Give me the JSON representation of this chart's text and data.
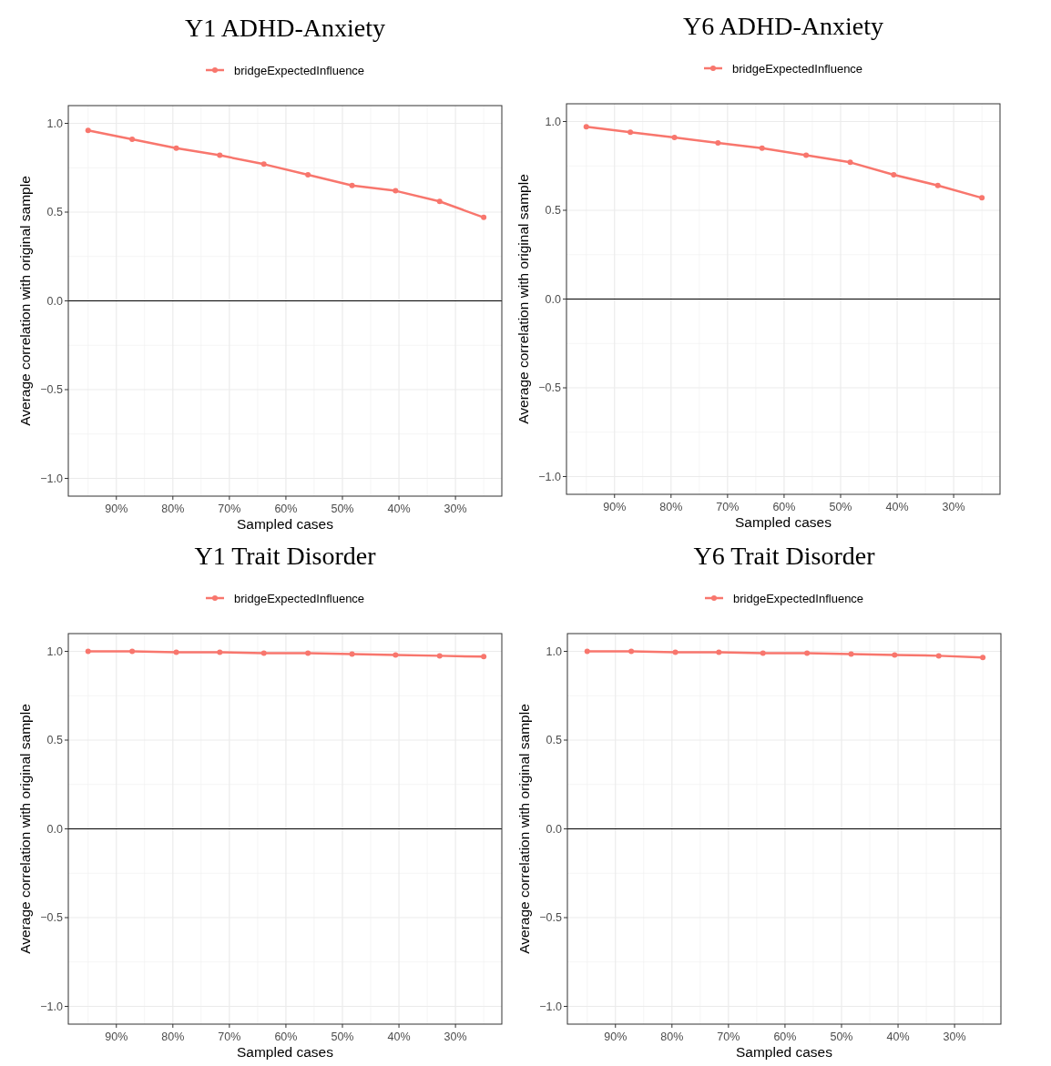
{
  "chart_data": [
    {
      "type": "line",
      "title": "Y1 ADHD-Anxiety",
      "xlabel": "Sampled cases",
      "ylabel": "Average correlation with original sample",
      "x": [
        95,
        87.2,
        79.4,
        71.7,
        63.9,
        56.1,
        48.3,
        40.6,
        32.8,
        25
      ],
      "series": [
        {
          "name": "bridgeExpectedInfluence",
          "color": "#f8766d",
          "values": [
            0.96,
            0.91,
            0.86,
            0.82,
            0.77,
            0.71,
            0.65,
            0.62,
            0.56,
            0.47
          ]
        }
      ],
      "xlim": [
        98.5,
        21.8
      ],
      "xticks": [
        {
          "value": 90,
          "label": "90%"
        },
        {
          "value": 80,
          "label": "80%"
        },
        {
          "value": 70,
          "label": "70%"
        },
        {
          "value": 60,
          "label": "60%"
        },
        {
          "value": 50,
          "label": "50%"
        },
        {
          "value": 40,
          "label": "40%"
        },
        {
          "value": 30,
          "label": "30%"
        }
      ],
      "ylim": [
        -1.1,
        1.1
      ],
      "yticks": [
        {
          "value": -1,
          "label": "−1.0"
        },
        {
          "value": -0.5,
          "label": "−0.5"
        },
        {
          "value": 0,
          "label": "0.0"
        },
        {
          "value": 0.5,
          "label": "0.5"
        },
        {
          "value": 1,
          "label": "1.0"
        }
      ],
      "ref_lines": [
        {
          "axis": "y",
          "value": 0,
          "color": "#000000"
        }
      ],
      "grid": true,
      "legend": "top",
      "marker": "circle",
      "line_style": "solid"
    },
    {
      "type": "line",
      "title": "Y6 ADHD-Anxiety",
      "xlabel": "Sampled cases",
      "ylabel": "Average correlation with original sample",
      "x": [
        95,
        87.2,
        79.4,
        71.7,
        63.9,
        56.1,
        48.3,
        40.6,
        32.8,
        25
      ],
      "series": [
        {
          "name": "bridgeExpectedInfluence",
          "color": "#f8766d",
          "values": [
            0.97,
            0.94,
            0.91,
            0.88,
            0.85,
            0.81,
            0.77,
            0.7,
            0.64,
            0.57
          ]
        }
      ],
      "xlim": [
        98.5,
        21.8
      ],
      "xticks": [
        {
          "value": 90,
          "label": "90%"
        },
        {
          "value": 80,
          "label": "80%"
        },
        {
          "value": 70,
          "label": "70%"
        },
        {
          "value": 60,
          "label": "60%"
        },
        {
          "value": 50,
          "label": "50%"
        },
        {
          "value": 40,
          "label": "40%"
        },
        {
          "value": 30,
          "label": "30%"
        }
      ],
      "ylim": [
        -1.1,
        1.1
      ],
      "yticks": [
        {
          "value": -1,
          "label": "−1.0"
        },
        {
          "value": -0.5,
          "label": "−0.5"
        },
        {
          "value": 0,
          "label": "0.0"
        },
        {
          "value": 0.5,
          "label": "0.5"
        },
        {
          "value": 1,
          "label": "1.0"
        }
      ],
      "ref_lines": [
        {
          "axis": "y",
          "value": 0,
          "color": "#000000"
        }
      ],
      "grid": true,
      "legend": "top",
      "marker": "circle",
      "line_style": "solid"
    },
    {
      "type": "line",
      "title": "Y1 Trait Disorder",
      "xlabel": "Sampled cases",
      "ylabel": "Average correlation with original sample",
      "x": [
        95,
        87.2,
        79.4,
        71.7,
        63.9,
        56.1,
        48.3,
        40.6,
        32.8,
        25
      ],
      "series": [
        {
          "name": "bridgeExpectedInfluence",
          "color": "#f8766d",
          "values": [
            1.0,
            1.0,
            0.995,
            0.995,
            0.99,
            0.99,
            0.985,
            0.98,
            0.975,
            0.97
          ]
        }
      ],
      "xlim": [
        98.5,
        21.8
      ],
      "xticks": [
        {
          "value": 90,
          "label": "90%"
        },
        {
          "value": 80,
          "label": "80%"
        },
        {
          "value": 70,
          "label": "70%"
        },
        {
          "value": 60,
          "label": "60%"
        },
        {
          "value": 50,
          "label": "50%"
        },
        {
          "value": 40,
          "label": "40%"
        },
        {
          "value": 30,
          "label": "30%"
        }
      ],
      "ylim": [
        -1.1,
        1.1
      ],
      "yticks": [
        {
          "value": -1,
          "label": "−1.0"
        },
        {
          "value": -0.5,
          "label": "−0.5"
        },
        {
          "value": 0,
          "label": "0.0"
        },
        {
          "value": 0.5,
          "label": "0.5"
        },
        {
          "value": 1,
          "label": "1.0"
        }
      ],
      "ref_lines": [
        {
          "axis": "y",
          "value": 0,
          "color": "#000000"
        }
      ],
      "grid": true,
      "legend": "top",
      "marker": "circle",
      "line_style": "solid"
    },
    {
      "type": "line",
      "title": "Y6 Trait Disorder",
      "xlabel": "Sampled cases",
      "ylabel": "Average correlation with original sample",
      "x": [
        95,
        87.2,
        79.4,
        71.7,
        63.9,
        56.1,
        48.3,
        40.6,
        32.8,
        25
      ],
      "series": [
        {
          "name": "bridgeExpectedInfluence",
          "color": "#f8766d",
          "values": [
            1.0,
            1.0,
            0.995,
            0.995,
            0.99,
            0.99,
            0.985,
            0.98,
            0.975,
            0.965
          ]
        }
      ],
      "xlim": [
        98.5,
        21.8
      ],
      "xticks": [
        {
          "value": 90,
          "label": "90%"
        },
        {
          "value": 80,
          "label": "80%"
        },
        {
          "value": 70,
          "label": "70%"
        },
        {
          "value": 60,
          "label": "60%"
        },
        {
          "value": 50,
          "label": "50%"
        },
        {
          "value": 40,
          "label": "40%"
        },
        {
          "value": 30,
          "label": "30%"
        }
      ],
      "ylim": [
        -1.1,
        1.1
      ],
      "yticks": [
        {
          "value": -1,
          "label": "−1.0"
        },
        {
          "value": -0.5,
          "label": "−0.5"
        },
        {
          "value": 0,
          "label": "0.0"
        },
        {
          "value": 0.5,
          "label": "0.5"
        },
        {
          "value": 1,
          "label": "1.0"
        }
      ],
      "ref_lines": [
        {
          "axis": "y",
          "value": 0,
          "color": "#000000"
        }
      ],
      "grid": true,
      "legend": "top",
      "marker": "circle",
      "line_style": "solid"
    }
  ]
}
